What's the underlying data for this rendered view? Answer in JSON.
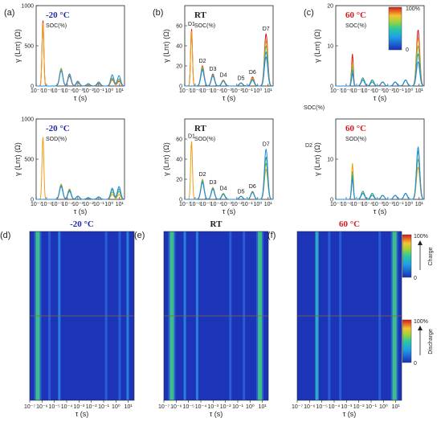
{
  "colors": {
    "blue": "#1f2aa5",
    "red": "#d7191c",
    "dark": "#222222"
  },
  "panels": {
    "a": "(a)",
    "b": "(b)",
    "c": "(c)",
    "d": "(d)",
    "e": "(e)",
    "f": "(f)"
  },
  "temps": {
    "cold": "-20 °C",
    "rt": "RT",
    "hot": "60 °C"
  },
  "labels": {
    "soc": "SOC(%)",
    "sod": "SOD(%)",
    "ylabel": "γ (Lnτ) (Ω)",
    "xlabel": "τ (s)",
    "soc_extra": "SOC(%)",
    "d2_extra": "D2",
    "charge": "Charge",
    "discharge": "Discharge",
    "pct100": "100%",
    "pct0": "0"
  },
  "x_ticks": [
    "10⁻⁷",
    "10⁻⁶",
    "10⁻⁵",
    "10⁻⁴",
    "10⁻³",
    "10⁻²",
    "10⁻¹",
    "10⁰",
    "10¹"
  ],
  "peak_labels": [
    "D1",
    "D2",
    "D3",
    "D4",
    "D5",
    "D6",
    "D7"
  ],
  "chart_data": [
    {
      "id": "a-top",
      "type": "line",
      "title": "-20 °C",
      "subtitle": "SOC(%)",
      "ylabel": "γ (Lnτ) (Ω)",
      "xlabel": "τ (s)",
      "ylim": [
        0,
        1000
      ],
      "yticks": [
        0,
        500,
        1000
      ],
      "xscale": "log",
      "xlim": [
        1e-07,
        30
      ],
      "peaks_logx": [
        -6.35,
        -4.6,
        -3.8,
        -3.0,
        -2.0,
        -1.0,
        0.3,
        0.95
      ],
      "series": [
        {
          "color": "#d7191c",
          "heights": [
            820,
            200,
            120,
            40,
            20,
            30,
            80,
            60
          ]
        },
        {
          "color": "#f39c12",
          "heights": [
            790,
            210,
            130,
            45,
            20,
            35,
            90,
            70
          ]
        },
        {
          "color": "#7cb342",
          "heights": [
            0,
            220,
            140,
            50,
            25,
            40,
            100,
            90
          ]
        },
        {
          "color": "#1e88e5",
          "heights": [
            0,
            190,
            150,
            60,
            30,
            50,
            140,
            130
          ]
        }
      ]
    },
    {
      "id": "b-top",
      "type": "line",
      "title": "RT",
      "subtitle": "SOC(%)",
      "ylabel": "γ (Lnτ) (Ω)",
      "xlabel": "τ (s)",
      "ylim": [
        0,
        80
      ],
      "yticks": [
        0,
        20,
        40,
        60
      ],
      "xscale": "log",
      "peaks_logx": [
        -6.35,
        -5.3,
        -4.3,
        -3.3,
        -1.6,
        -0.5,
        0.8
      ],
      "series": [
        {
          "color": "#d7191c",
          "heights": [
            57,
            20,
            12,
            6,
            3,
            9,
            52
          ]
        },
        {
          "color": "#f39c12",
          "heights": [
            55,
            19,
            11,
            6,
            3,
            8,
            45
          ]
        },
        {
          "color": "#7cb342",
          "heights": [
            0,
            18,
            11,
            5,
            3,
            7,
            40
          ]
        },
        {
          "color": "#26a69a",
          "heights": [
            0,
            17,
            10,
            5,
            3,
            6,
            34
          ]
        },
        {
          "color": "#1e88e5",
          "heights": [
            0,
            16,
            10,
            5,
            3,
            6,
            29
          ]
        }
      ]
    },
    {
      "id": "c-top",
      "type": "line",
      "title": "60 °C",
      "subtitle": "SOC(%)",
      "ylabel": "γ (Lnτ) (Ω)",
      "xlabel": "τ (s)",
      "ylim": [
        0,
        20
      ],
      "yticks": [
        0,
        10,
        20
      ],
      "xscale": "log",
      "peaks_logx": [
        -5.4,
        -4.4,
        -3.5,
        -2.5,
        -1.3,
        -0.3,
        0.9
      ],
      "series": [
        {
          "color": "#d7191c",
          "heights": [
            8,
            2,
            1.5,
            1,
            1,
            1.5,
            14
          ]
        },
        {
          "color": "#f39c12",
          "heights": [
            6,
            2,
            1.5,
            1,
            1,
            1.5,
            12
          ]
        },
        {
          "color": "#7cb342",
          "heights": [
            5,
            2,
            1.5,
            1,
            1,
            1.5,
            10
          ]
        },
        {
          "color": "#26a69a",
          "heights": [
            4,
            2,
            1.5,
            1,
            1,
            1.5,
            8
          ]
        },
        {
          "color": "#1e88e5",
          "heights": [
            3,
            1.5,
            1,
            1,
            1,
            1.5,
            6
          ]
        }
      ]
    },
    {
      "id": "a-bottom",
      "type": "line",
      "title": "-20 °C",
      "subtitle": "SOD(%)",
      "ylabel": "γ (Lnτ) (Ω)",
      "xlabel": "τ (s)",
      "ylim": [
        0,
        1000
      ],
      "yticks": [
        0,
        500,
        1000
      ],
      "xscale": "log",
      "peaks_logx": [
        -6.35,
        -4.6,
        -3.8,
        -3.0,
        -2.0,
        -1.0,
        0.3,
        0.95
      ],
      "series": [
        {
          "color": "#f39c12",
          "heights": [
            780,
            190,
            130,
            40,
            20,
            30,
            60,
            60
          ]
        },
        {
          "color": "#7cb342",
          "heights": [
            0,
            180,
            120,
            40,
            20,
            30,
            90,
            100
          ]
        },
        {
          "color": "#26a69a",
          "heights": [
            0,
            170,
            110,
            40,
            20,
            30,
            120,
            130
          ]
        },
        {
          "color": "#1e88e5",
          "heights": [
            0,
            160,
            100,
            40,
            20,
            30,
            140,
            160
          ]
        }
      ]
    },
    {
      "id": "b-bottom",
      "type": "line",
      "title": "RT",
      "subtitle": "SOD(%)",
      "ylabel": "γ (Lnτ) (Ω)",
      "xlabel": "τ (s)",
      "ylim": [
        0,
        80
      ],
      "yticks": [
        0,
        20,
        40,
        60
      ],
      "xscale": "log",
      "peaks_logx": [
        -6.35,
        -5.3,
        -4.3,
        -3.3,
        -1.6,
        -0.5,
        0.8
      ],
      "series": [
        {
          "color": "#f39c12",
          "heights": [
            58,
            20,
            12,
            6,
            3,
            8,
            30
          ]
        },
        {
          "color": "#7cb342",
          "heights": [
            0,
            19,
            11,
            6,
            3,
            8,
            36
          ]
        },
        {
          "color": "#26a69a",
          "heights": [
            0,
            18,
            11,
            5,
            3,
            7,
            42
          ]
        },
        {
          "color": "#1e88e5",
          "heights": [
            0,
            17,
            10,
            5,
            3,
            7,
            50
          ]
        }
      ]
    },
    {
      "id": "c-bottom",
      "type": "line",
      "title": "60 °C",
      "subtitle": "SOD(%)",
      "ylabel": "γ (Lnτ) (Ω)",
      "xlabel": "τ (s)",
      "ylim": [
        0,
        20
      ],
      "yticks": [
        0,
        10
      ],
      "xscale": "log",
      "peaks_logx": [
        -5.4,
        -4.4,
        -3.5,
        -2.5,
        -1.3,
        -0.3,
        0.9
      ],
      "series": [
        {
          "color": "#f39c12",
          "heights": [
            9,
            2,
            1.5,
            1,
            1,
            1.5,
            8
          ]
        },
        {
          "color": "#7cb342",
          "heights": [
            7,
            2,
            1.5,
            1,
            1,
            1.5,
            10
          ]
        },
        {
          "color": "#26a69a",
          "heights": [
            6,
            2,
            1.5,
            1,
            1,
            1.5,
            12
          ]
        },
        {
          "color": "#1e88e5",
          "heights": [
            5,
            1.5,
            1,
            1,
            1,
            1.5,
            13
          ]
        }
      ]
    },
    {
      "id": "d",
      "type": "heatmap",
      "title": "-20 °C",
      "xlabel": "τ (s)",
      "bands_logx": [
        -6.35,
        -5.4,
        -4.6,
        -0.8,
        0.3,
        0.95
      ],
      "intensity": [
        0.9,
        0.25,
        0.4,
        0.2,
        0.3,
        0.35
      ]
    },
    {
      "id": "e",
      "type": "heatmap",
      "title": "RT",
      "xlabel": "τ (s)",
      "bands_logx": [
        -6.35,
        -5.3,
        -4.3,
        -1.6,
        -0.5,
        0.8
      ],
      "intensity": [
        0.95,
        0.35,
        0.45,
        0.2,
        0.25,
        0.95
      ]
    },
    {
      "id": "f",
      "type": "heatmap",
      "title": "60 °C",
      "xlabel": "τ (s)",
      "bands_logx": [
        -5.4,
        -4.4,
        -3.5,
        -0.3,
        0.9
      ],
      "intensity": [
        0.7,
        0.3,
        0.25,
        0.25,
        0.9
      ]
    }
  ]
}
